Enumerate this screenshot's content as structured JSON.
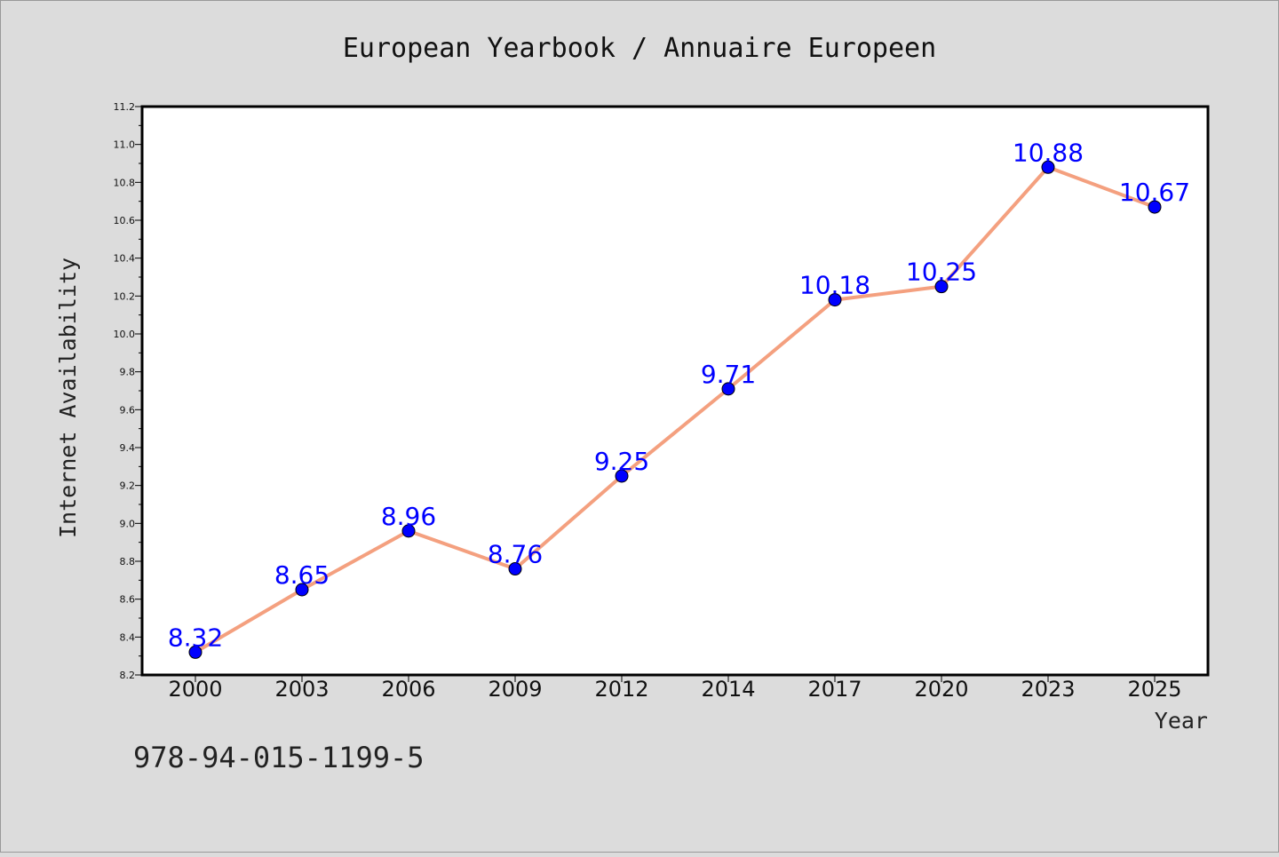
{
  "footer_code": "978-94-015-1199-5",
  "colors": {
    "background": "#dcdcdc",
    "plot_background": "#ffffff",
    "line": "#f4a07f",
    "marker": "#0000ff",
    "data_label": "#0000ff"
  },
  "chart_data": {
    "type": "line",
    "title": "European Yearbook / Annuaire Europeen",
    "xlabel": "Year",
    "ylabel": "Internet Availability",
    "categories": [
      "2000",
      "2003",
      "2006",
      "2009",
      "2012",
      "2014",
      "2017",
      "2020",
      "2023",
      "2025"
    ],
    "series": [
      {
        "values": [
          8.32,
          8.65,
          8.96,
          8.76,
          9.25,
          9.71,
          10.18,
          10.25,
          10.88,
          10.67
        ],
        "labels": [
          "8.32",
          "8.65",
          "8.96",
          "8.76",
          "9.25",
          "9.71",
          "10.18",
          "10.25",
          "10.88",
          "10.67"
        ]
      }
    ],
    "ylim": [
      8.2,
      11.2
    ],
    "yticks": [
      "8.2",
      "8.4",
      "8.6",
      "8.8",
      "9.0",
      "9.2",
      "9.4",
      "9.6",
      "9.8",
      "10.0",
      "10.2",
      "10.4",
      "10.6",
      "10.8",
      "11.0",
      "11.2"
    ],
    "grid": false,
    "legend": "none"
  }
}
